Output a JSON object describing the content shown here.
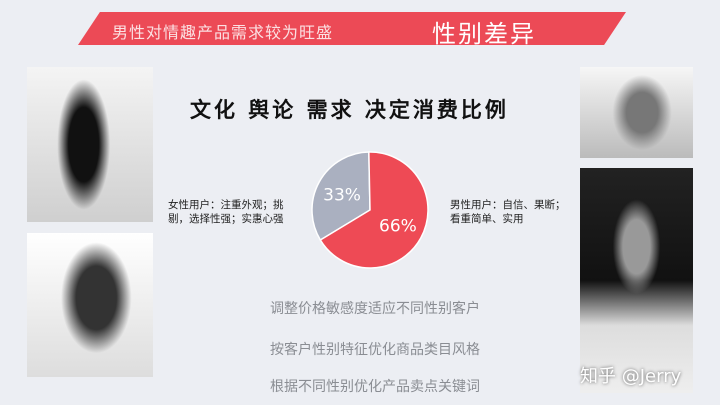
{
  "banner": {
    "subtitle": "男性对情趣产品需求较为旺盛",
    "tag": "性别差异"
  },
  "title": "文化 舆论 需求 决定消费比例",
  "female_note": "女性用户：注重外观；挑剔，选择性强；实惠心强",
  "male_note": "男性用户：自信、果断；看重简单、实用",
  "chart_data": {
    "type": "pie",
    "categories": [
      "女性",
      "男性"
    ],
    "values": [
      33,
      66
    ],
    "labels": [
      "33%",
      "66%"
    ],
    "colors": [
      "#aab0c0",
      "#ee4a55"
    ]
  },
  "bullets": [
    "调整价格敏感度适应不同性别客户",
    "按客户性别特征优化商品类目风格",
    "根据不同性别优化产品卖点关键词"
  ],
  "watermark": "知乎 @Jerry",
  "colors": {
    "accent": "#ec4a56",
    "background": "#eceef3"
  }
}
